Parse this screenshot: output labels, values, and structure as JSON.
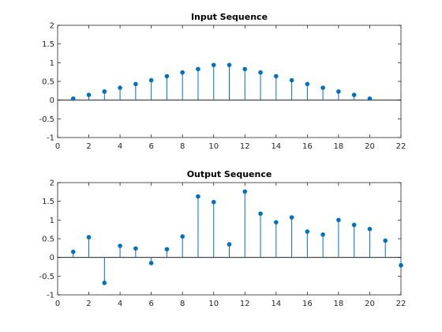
{
  "chart_data": [
    {
      "type": "stem",
      "title": "Input Sequence",
      "xlabel": "",
      "ylabel": "",
      "xlim": [
        0,
        22
      ],
      "ylim": [
        -1,
        2
      ],
      "xticks": [
        "0",
        "2",
        "4",
        "6",
        "8",
        "10",
        "12",
        "14",
        "16",
        "18",
        "20",
        "22"
      ],
      "yticks": [
        "-1",
        "-0.5",
        "0",
        "0.5",
        "1",
        "1.5",
        "2"
      ],
      "baseline": 0,
      "color": "#0072bd",
      "x": [
        1,
        2,
        3,
        4,
        5,
        6,
        7,
        8,
        9,
        10,
        11,
        12,
        13,
        14,
        15,
        16,
        17,
        18,
        19,
        20
      ],
      "y": [
        0.04,
        0.14,
        0.23,
        0.33,
        0.43,
        0.53,
        0.64,
        0.74,
        0.83,
        0.94,
        0.94,
        0.83,
        0.74,
        0.64,
        0.53,
        0.43,
        0.33,
        0.23,
        0.14,
        0.04
      ]
    },
    {
      "type": "stem",
      "title": "Output Sequence",
      "xlabel": "",
      "ylabel": "",
      "xlim": [
        0,
        22
      ],
      "ylim": [
        -1,
        2
      ],
      "xticks": [
        "0",
        "2",
        "4",
        "6",
        "8",
        "10",
        "12",
        "14",
        "16",
        "18",
        "20",
        "22"
      ],
      "yticks": [
        "-1",
        "-0.5",
        "0",
        "0.5",
        "1",
        "1.5",
        "2"
      ],
      "baseline": 0,
      "color": "#0072bd",
      "x": [
        1,
        2,
        3,
        4,
        5,
        6,
        7,
        8,
        9,
        10,
        11,
        12,
        13,
        14,
        15,
        16,
        17,
        18,
        19,
        20,
        21,
        22
      ],
      "y": [
        0.15,
        0.54,
        -0.68,
        0.31,
        0.24,
        -0.15,
        0.22,
        0.56,
        1.63,
        1.48,
        0.35,
        1.76,
        1.17,
        0.94,
        1.07,
        0.69,
        0.61,
        1.0,
        0.87,
        0.76,
        0.45,
        -0.21
      ]
    }
  ]
}
